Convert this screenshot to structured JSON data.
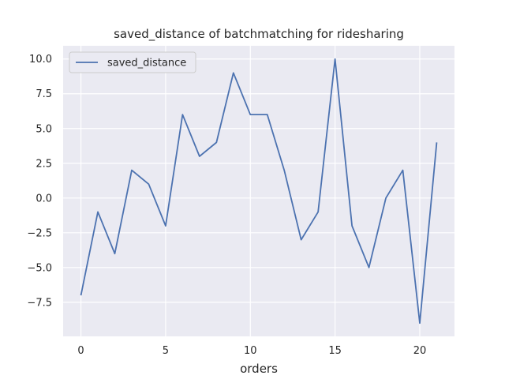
{
  "chart_data": {
    "type": "line",
    "title": "saved_distance of batchmatching for ridesharing",
    "xlabel": "orders",
    "ylabel": "",
    "x": [
      0,
      1,
      2,
      3,
      4,
      5,
      6,
      7,
      8,
      9,
      10,
      11,
      12,
      13,
      14,
      15,
      16,
      17,
      18,
      19,
      20,
      21
    ],
    "series": [
      {
        "name": "saved_distance",
        "color": "#4c72b0",
        "values": [
          -7,
          -1,
          -4,
          2,
          1,
          -2,
          6,
          3,
          4,
          9,
          6,
          6,
          2,
          -3,
          -1,
          10,
          -2,
          -5,
          0,
          2,
          -9,
          4
        ]
      }
    ],
    "xlim": [
      -1.05,
      22.05
    ],
    "ylim": [
      -9.95,
      10.95
    ],
    "xticks": [
      0,
      5,
      10,
      15,
      20
    ],
    "xtick_labels": [
      "0",
      "5",
      "10",
      "15",
      "20"
    ],
    "yticks": [
      -7.5,
      -5.0,
      -2.5,
      0.0,
      2.5,
      5.0,
      7.5,
      10.0
    ],
    "ytick_labels": [
      "−7.5",
      "−5.0",
      "−2.5",
      "0.0",
      "2.5",
      "5.0",
      "7.5",
      "10.0"
    ],
    "grid": true,
    "legend_position": "top-left",
    "background_color": "#eaeaf2",
    "grid_color": "#ffffff"
  }
}
